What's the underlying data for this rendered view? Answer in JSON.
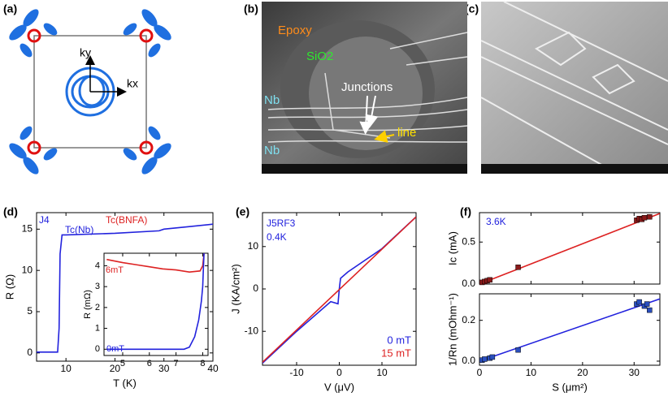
{
  "panel_labels": [
    "(a)",
    "(b)",
    "(c)",
    "(d)",
    "(e)",
    "(f)"
  ],
  "panel_a": {
    "ky": "ky",
    "kx": "kx"
  },
  "panel_b": {
    "labels": [
      "Epoxy",
      "SiO2",
      "Junctions",
      "Nb",
      "Nb",
      "line"
    ]
  },
  "chart_data": [
    {
      "type": "line",
      "xlabel": "T (K)",
      "ylabel": "R (Ω)",
      "xlim": [
        4,
        40
      ],
      "ylim": [
        -1,
        17
      ],
      "xticks": [
        10,
        20,
        30,
        40
      ],
      "yticks": [
        0,
        5,
        10,
        15
      ],
      "annotations": [
        "J4",
        "Tc(Nb)",
        "Tc(BNFA)"
      ],
      "series": [
        {
          "color": "#2222dd",
          "kind": "line",
          "x": [
            4,
            8.3,
            8.6,
            8.8,
            9.2,
            10,
            20,
            29,
            30,
            35,
            40
          ],
          "values": [
            0.1,
            0.1,
            3,
            12,
            14.3,
            14.3,
            14.5,
            14.8,
            15.0,
            15.3,
            15.6
          ]
        }
      ]
    },
    {
      "type": "line",
      "ylabel": "R (mΩ)",
      "xlim": [
        4.3,
        8.2
      ],
      "ylim": [
        -0.3,
        4.6
      ],
      "xticks": [
        5,
        6,
        7,
        8
      ],
      "yticks": [
        0,
        1,
        2,
        3,
        4
      ],
      "annotations": [
        "6mT",
        "0mT"
      ],
      "series": [
        {
          "name": "6mT",
          "color": "#dd2222",
          "kind": "line",
          "x": [
            4.4,
            5,
            5.5,
            6,
            6.5,
            7,
            7.5,
            7.9,
            8.0,
            8.05
          ],
          "values": [
            4.3,
            4.15,
            4.05,
            3.95,
            3.85,
            3.8,
            3.7,
            3.75,
            4.0,
            4.6
          ]
        },
        {
          "name": "0mT",
          "color": "#2222dd",
          "kind": "line",
          "x": [
            4.4,
            7.3,
            7.5,
            7.7,
            7.85,
            7.95,
            8.0,
            8.03,
            8.05
          ],
          "values": [
            0,
            0,
            0.1,
            0.6,
            1.4,
            2.3,
            3.0,
            4.0,
            4.6
          ]
        }
      ]
    },
    {
      "type": "line",
      "xlabel": "V (μV)",
      "ylabel": "J (KA/cm²)",
      "xlim": [
        -18,
        18
      ],
      "ylim": [
        -18,
        18
      ],
      "xticks": [
        -10,
        0,
        10
      ],
      "yticks": [
        -10,
        0,
        10
      ],
      "annotations": [
        "J5RF3",
        "0.4K"
      ],
      "series": [
        {
          "name": "0  mT",
          "color": "#2222dd",
          "kind": "line",
          "x": [
            -18,
            -10,
            -2,
            -0.3,
            0,
            0.3,
            2,
            10,
            18
          ],
          "values": [
            -17.5,
            -10,
            -3,
            -3.5,
            0,
            2.5,
            4,
            9.5,
            17
          ]
        },
        {
          "name": "15 mT",
          "color": "#dd2222",
          "kind": "line",
          "x": [
            -18,
            18
          ],
          "values": [
            -17.3,
            17
          ]
        }
      ]
    },
    {
      "type": "scatter",
      "ylabel": "Ic (mA)",
      "xtick_labels": false,
      "xlim": [
        0,
        35
      ],
      "ylim": [
        0,
        0.85
      ],
      "xticks": [
        0,
        10,
        20,
        30
      ],
      "yticks": [
        {
          "value": 0,
          "label": "0.0"
        },
        0.5
      ],
      "annotations": [
        "3.6K"
      ],
      "series": [
        {
          "color": "#dd2222",
          "kind": "line",
          "x": [
            0,
            35
          ],
          "values": [
            0,
            0.84
          ]
        },
        {
          "color": "#8b1a1a",
          "kind": "markers",
          "x": [
            0.5,
            1,
            1.5,
            2,
            7.5,
            30.5,
            31,
            31.5,
            32,
            33
          ],
          "values": [
            0.02,
            0.03,
            0.04,
            0.05,
            0.2,
            0.76,
            0.78,
            0.77,
            0.79,
            0.8
          ]
        }
      ]
    },
    {
      "type": "scatter",
      "xlabel": "S (μm²)",
      "ylabel": "1/Rn (mOhm⁻¹)",
      "xlim": [
        0,
        35
      ],
      "ylim": [
        -0.02,
        0.33
      ],
      "xticks": [
        0,
        10,
        20,
        30
      ],
      "yticks": [
        {
          "value": 0,
          "label": "0.0"
        },
        0.2
      ],
      "series": [
        {
          "color": "#2222dd",
          "kind": "line",
          "x": [
            0,
            35
          ],
          "values": [
            0,
            0.305
          ]
        },
        {
          "color": "#2a4fbf",
          "kind": "markers",
          "x": [
            0.5,
            1,
            2,
            2.5,
            7.5,
            30.5,
            31,
            32,
            32.5,
            33
          ],
          "values": [
            0.005,
            0.01,
            0.015,
            0.02,
            0.055,
            0.28,
            0.29,
            0.27,
            0.28,
            0.25
          ]
        }
      ]
    }
  ]
}
